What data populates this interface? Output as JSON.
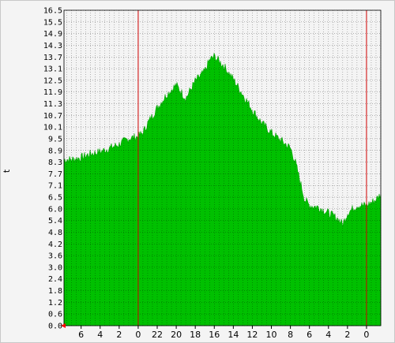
{
  "chart_data": {
    "type": "area",
    "ylabel": "t",
    "ylim": [
      0,
      16.5
    ],
    "y_ticks": [
      "0.0",
      "0.6",
      "1.2",
      "1.8",
      "2.4",
      "3.0",
      "3.6",
      "4.2",
      "4.8",
      "5.4",
      "6.0",
      "6.5",
      "7.1",
      "7.7",
      "8.3",
      "8.9",
      "9.5",
      "10.1",
      "10.7",
      "11.3",
      "11.9",
      "12.5",
      "13.1",
      "13.7",
      "14.3",
      "14.9",
      "15.5",
      "16.5"
    ],
    "x_ticks": [
      "6",
      "4",
      "2",
      "0",
      "22",
      "20",
      "18",
      "16",
      "14",
      "12",
      "10",
      "8",
      "6",
      "4",
      "2",
      "0"
    ],
    "x_tick_positions_hours": [
      -6,
      -4,
      -2,
      0,
      2,
      4,
      6,
      8,
      10,
      12,
      14,
      16,
      18,
      20,
      22,
      24
    ],
    "x_range_hours": [
      -7.8,
      25.5
    ],
    "midnight_markers_hours": [
      0,
      24
    ],
    "grid": true,
    "series": [
      {
        "color": "#00c000",
        "x": [
          -7.8,
          -7,
          -6,
          -5,
          -4,
          -3,
          -2,
          -1,
          0,
          0.5,
          1,
          2,
          3,
          4,
          5,
          6,
          7,
          7.5,
          8,
          9,
          10,
          11,
          12,
          13,
          14,
          15,
          16,
          16.5,
          17,
          17.5,
          18,
          19,
          20,
          21,
          21.5,
          22,
          23,
          24,
          25,
          25.5
        ],
        "y": [
          8.6,
          8.6,
          8.7,
          8.9,
          9.0,
          9.2,
          9.4,
          9.7,
          9.8,
          10.0,
          10.5,
          11.3,
          12.0,
          12.5,
          11.8,
          12.7,
          13.2,
          13.8,
          14.0,
          13.5,
          12.8,
          12.0,
          11.2,
          10.5,
          10.0,
          9.6,
          9.2,
          8.5,
          7.5,
          6.5,
          6.2,
          6.1,
          5.8,
          5.5,
          5.2,
          5.8,
          6.2,
          6.2,
          6.5,
          6.8
        ]
      }
    ]
  }
}
